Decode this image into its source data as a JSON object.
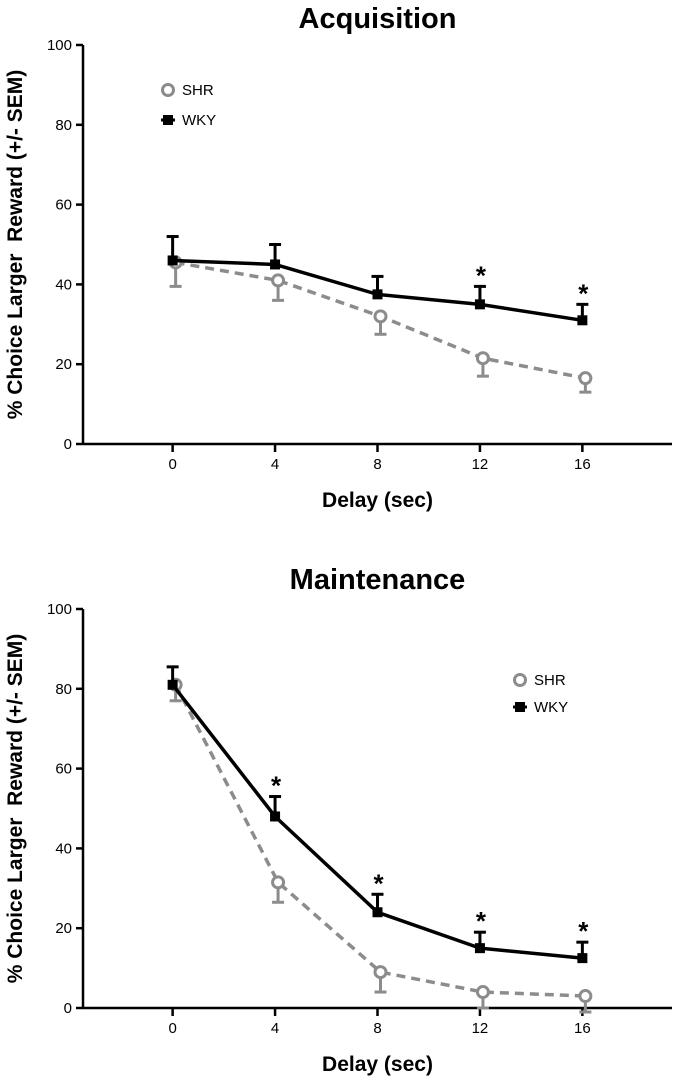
{
  "chart_data": [
    {
      "type": "line",
      "title": "Acquisition",
      "xlabel": "Delay (sec)",
      "ylabel": "% Choice Larger  Reward (+/- SEM)",
      "x": [
        0,
        4,
        8,
        12,
        16
      ],
      "xlim": [
        -3.5,
        19.5
      ],
      "ylim": [
        0,
        100
      ],
      "yticks": [
        0,
        20,
        40,
        60,
        80,
        100
      ],
      "legend_position": "top-left",
      "series": [
        {
          "name": "SHR",
          "values": [
            45.5,
            41,
            32,
            21.5,
            16.5
          ],
          "sem": [
            6,
            5,
            4.5,
            4.5,
            3.5
          ],
          "error_direction": "down",
          "color": "#8c8c8c",
          "line_style": "dashed",
          "marker": "open-circle"
        },
        {
          "name": "WKY",
          "values": [
            46,
            45,
            37.5,
            35,
            31
          ],
          "sem": [
            6,
            5,
            4.5,
            4.5,
            4
          ],
          "error_direction": "up",
          "color": "#000000",
          "line_style": "solid",
          "marker": "filled-square"
        }
      ],
      "annotations": [
        {
          "x": 12,
          "text": "*"
        },
        {
          "x": 16,
          "text": "*"
        }
      ]
    },
    {
      "type": "line",
      "title": "Maintenance",
      "xlabel": "Delay (sec)",
      "ylabel": "% Choice Larger  Reward (+/- SEM)",
      "x": [
        0,
        4,
        8,
        12,
        16
      ],
      "xlim": [
        -3.5,
        19.5
      ],
      "ylim": [
        0,
        100
      ],
      "yticks": [
        0,
        20,
        40,
        60,
        80,
        100
      ],
      "legend_position": "top-right",
      "series": [
        {
          "name": "SHR",
          "values": [
            81,
            31.5,
            9,
            4,
            3
          ],
          "sem": [
            4,
            5,
            5,
            4,
            4
          ],
          "error_direction": "down",
          "color": "#8c8c8c",
          "line_style": "dashed",
          "marker": "open-circle"
        },
        {
          "name": "WKY",
          "values": [
            81,
            48,
            24,
            15,
            12.5
          ],
          "sem": [
            4.5,
            5,
            4.5,
            4,
            4
          ],
          "error_direction": "up",
          "color": "#000000",
          "line_style": "solid",
          "marker": "filled-square"
        }
      ],
      "annotations": [
        {
          "x": 4,
          "text": "*"
        },
        {
          "x": 8,
          "text": "*"
        },
        {
          "x": 12,
          "text": "*"
        },
        {
          "x": 16,
          "text": "*"
        }
      ]
    }
  ]
}
